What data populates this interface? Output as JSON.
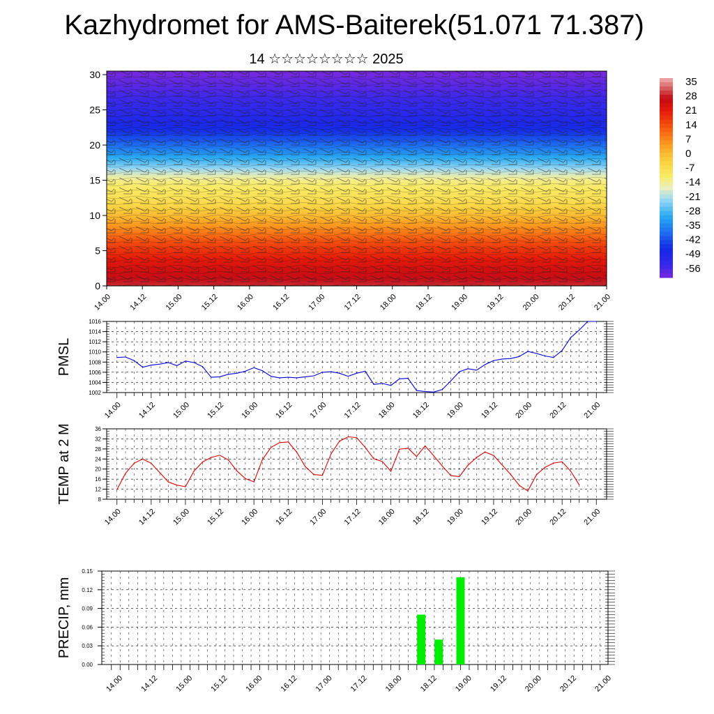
{
  "header": {
    "title": "Kazhydromet for AMS-Baiterek(51.071 71.387)",
    "subtitle": "14 ☆☆☆☆☆☆☆☆ 2025"
  },
  "x_tick_labels": [
    "14.00",
    "14.12",
    "15.00",
    "15.12",
    "16.00",
    "16.12",
    "17.00",
    "17.12",
    "18.00",
    "18.12",
    "19.00",
    "19.12",
    "20.00",
    "20.12",
    "21.00"
  ],
  "chart_data": [
    {
      "type": "heatmap",
      "description_of_axes": "time vs height",
      "x_ticks": [
        "14.00",
        "14.12",
        "15.00",
        "15.12",
        "16.00",
        "16.12",
        "17.00",
        "17.12",
        "18.00",
        "18.12",
        "19.00",
        "19.12",
        "20.00",
        "20.12",
        "21.00"
      ],
      "y_ticks": [
        0,
        5,
        10,
        15,
        20,
        25,
        30
      ],
      "ylim": [
        0,
        30.5
      ],
      "colorbar": {
        "labels": [
          "35",
          "28",
          "21",
          "14",
          "7",
          "0",
          "-7",
          "-14",
          "-21",
          "-28",
          "-35",
          "-42",
          "-49",
          "-56"
        ],
        "range": [
          -60,
          38
        ]
      },
      "temperature_profile": {
        "heights": [
          0,
          3,
          6,
          9,
          12,
          15,
          17,
          19,
          21,
          23,
          25,
          27,
          30.5
        ],
        "temps": [
          30,
          24,
          16,
          4,
          -6,
          -12,
          -24,
          -34,
          -42,
          -48,
          -52,
          -55,
          -60
        ]
      }
    },
    {
      "type": "line",
      "ylabel": "PMSL",
      "ylim": [
        1002,
        1016
      ],
      "y_ticks": [
        "1002",
        "1004",
        "1006",
        "1008",
        "1010",
        "1012",
        "1014",
        "1016"
      ],
      "series": [
        {
          "color": "#0000dd",
          "x": [
            0,
            0.125,
            0.25,
            0.375,
            0.5,
            0.625,
            0.75,
            0.875,
            1,
            1.125,
            1.25,
            1.375,
            1.5,
            1.625,
            1.75,
            1.875,
            2,
            2.125,
            2.25,
            2.375,
            2.5,
            2.625,
            2.75,
            2.875,
            3,
            3.125,
            3.25,
            3.375,
            3.5,
            3.625,
            3.75,
            3.875,
            4,
            4.125,
            4.25,
            4.375,
            4.5,
            4.625,
            4.75,
            4.875,
            5,
            5.125,
            5.25,
            5.375,
            5.5,
            5.625,
            5.75,
            5.875,
            6,
            6.125,
            6.25,
            6.375,
            6.5,
            6.625,
            6.75,
            6.875,
            7
          ],
          "values": [
            1008.9,
            1009.0,
            1008.3,
            1007.0,
            1007.4,
            1007.6,
            1007.9,
            1007.3,
            1008.2,
            1007.9,
            1007.1,
            1005.0,
            1005.1,
            1005.6,
            1005.8,
            1006.2,
            1006.9,
            1006.3,
            1005.2,
            1004.9,
            1005.0,
            1004.9,
            1005.1,
            1005.3,
            1006.0,
            1006.1,
            1005.8,
            1005.2,
            1005.8,
            1006.2,
            1003.6,
            1003.8,
            1003.4,
            1004.7,
            1004.8,
            1002.4,
            1002.2,
            1002.1,
            1002.6,
            1004.3,
            1006.1,
            1006.7,
            1006.4,
            1007.5,
            1008.3,
            1008.6,
            1008.7,
            1009.1,
            1010.1,
            1009.7,
            1009.2,
            1008.9,
            1010.3,
            1012.8,
            1014.3,
            1016.0,
            1016.0
          ]
        }
      ]
    },
    {
      "type": "line",
      "ylabel": "TEMP at 2 M",
      "ylim": [
        8,
        36
      ],
      "y_ticks": [
        "8",
        "12",
        "16",
        "20",
        "24",
        "28",
        "32",
        "36"
      ],
      "series": [
        {
          "color": "#dd0000",
          "x": [
            0,
            0.125,
            0.25,
            0.375,
            0.5,
            0.625,
            0.75,
            0.875,
            1,
            1.125,
            1.25,
            1.375,
            1.5,
            1.625,
            1.75,
            1.875,
            2,
            2.125,
            2.25,
            2.375,
            2.5,
            2.625,
            2.75,
            2.875,
            3,
            3.125,
            3.25,
            3.375,
            3.5,
            3.625,
            3.75,
            3.875,
            4,
            4.125,
            4.25,
            4.375,
            4.5,
            4.625,
            4.75,
            4.875,
            5,
            5.125,
            5.25,
            5.375,
            5.5,
            5.625,
            5.75,
            5.875,
            6,
            6.125,
            6.25,
            6.375,
            6.5,
            6.625,
            6.75
          ],
          "values": [
            11.8,
            18.3,
            22.3,
            24.0,
            22.3,
            18.6,
            14.9,
            13.6,
            13.0,
            19.2,
            22.8,
            24.6,
            25.5,
            23.7,
            19.3,
            16.2,
            14.9,
            23.8,
            28.6,
            30.5,
            30.8,
            26.7,
            21.0,
            17.8,
            17.5,
            26.0,
            31.1,
            32.8,
            32.5,
            28.6,
            24.1,
            23.0,
            19.1,
            27.9,
            28.3,
            25.0,
            29.2,
            25.3,
            21.2,
            17.4,
            17.0,
            21.5,
            24.6,
            26.8,
            25.4,
            21.6,
            17.8,
            13.5,
            11.3,
            17.7,
            20.7,
            22.4,
            22.9,
            19.2,
            13.7
          ]
        }
      ]
    },
    {
      "type": "bar",
      "ylabel": "PRECIP, mm",
      "ylim": [
        0,
        0.15
      ],
      "y_ticks": [
        "0.00",
        "0.03",
        "0.06",
        "0.09",
        "0.12",
        "0.15"
      ],
      "bars": [
        {
          "x": 4.375,
          "value": 0.08
        },
        {
          "x": 4.625,
          "value": 0.04
        },
        {
          "x": 4.9375,
          "value": 0.14
        }
      ],
      "bar_color": "#00ee00"
    }
  ]
}
